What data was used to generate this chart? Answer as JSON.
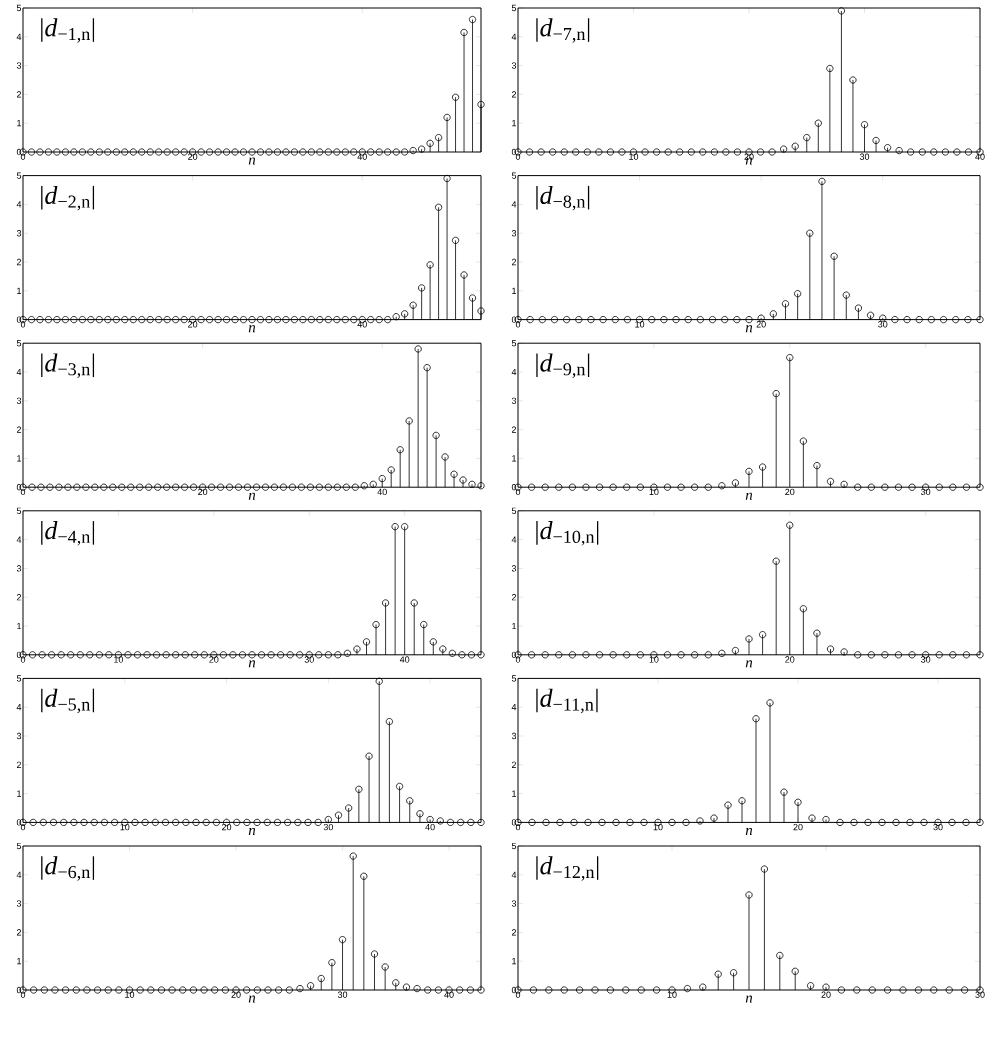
{
  "chart_data": [
    {
      "type": "lollipop",
      "annotations": [
        "|*d*$_{−1,n}$|"
      ],
      "xlabel": "n",
      "color": "#000000",
      "marker": "circle",
      "xlim": [
        0,
        54
      ],
      "ylim": [
        0,
        5
      ],
      "xticks": [
        0,
        20,
        40
      ],
      "yticks": [
        0,
        1,
        2,
        3,
        4,
        5
      ],
      "x": [
        0,
        1,
        2,
        3,
        4,
        5,
        6,
        7,
        8,
        9,
        10,
        11,
        12,
        13,
        14,
        15,
        16,
        17,
        18,
        19,
        20,
        21,
        22,
        23,
        24,
        25,
        26,
        27,
        28,
        29,
        30,
        31,
        32,
        33,
        34,
        35,
        36,
        37,
        38,
        39,
        40,
        41,
        42,
        43,
        44,
        45,
        46,
        47,
        48,
        49,
        50,
        51,
        52,
        53,
        54
      ],
      "values": [
        0,
        0,
        0,
        0,
        0,
        0,
        0,
        0,
        0,
        0,
        0,
        0,
        0,
        0,
        0,
        0,
        0,
        0,
        0,
        0,
        0,
        0,
        0,
        0,
        0,
        0,
        0,
        0,
        0,
        0,
        0,
        0,
        0,
        0,
        0,
        0,
        0,
        0,
        0,
        0,
        0,
        0,
        0,
        0,
        0,
        0,
        0.05,
        0.1,
        0.3,
        0.5,
        1.2,
        1.9,
        4.15,
        4.6,
        1.65
      ]
    },
    {
      "type": "lollipop",
      "annotations": [
        "|*d*$_{−7,n}$|"
      ],
      "xlabel": "n",
      "color": "#000000",
      "marker": "circle",
      "xlim": [
        0,
        40
      ],
      "ylim": [
        0,
        5
      ],
      "xticks": [
        0,
        10,
        20,
        30,
        40
      ],
      "yticks": [
        0,
        1,
        2,
        3,
        4,
        5
      ],
      "x": [
        0,
        1,
        2,
        3,
        4,
        5,
        6,
        7,
        8,
        9,
        10,
        11,
        12,
        13,
        14,
        15,
        16,
        17,
        18,
        19,
        20,
        21,
        22,
        23,
        24,
        25,
        26,
        27,
        28,
        29,
        30,
        31,
        32,
        33,
        34,
        35,
        36,
        37,
        38,
        39,
        40
      ],
      "values": [
        0,
        0,
        0,
        0,
        0,
        0,
        0,
        0,
        0,
        0,
        0,
        0,
        0,
        0,
        0,
        0,
        0,
        0,
        0,
        0,
        0,
        0,
        0,
        0.1,
        0.2,
        0.5,
        1.0,
        2.9,
        4.9,
        2.5,
        0.95,
        0.4,
        0.15,
        0.05,
        0,
        0,
        0,
        0,
        0,
        0,
        0
      ]
    },
    {
      "type": "lollipop",
      "annotations": [
        "|*d*$_{−2,n}$|"
      ],
      "xlabel": "n",
      "color": "#000000",
      "marker": "circle",
      "xlim": [
        0,
        54
      ],
      "ylim": [
        0,
        5
      ],
      "xticks": [
        0,
        20,
        40
      ],
      "yticks": [
        0,
        1,
        2,
        3,
        4,
        5
      ],
      "x": [
        0,
        1,
        2,
        3,
        4,
        5,
        6,
        7,
        8,
        9,
        10,
        11,
        12,
        13,
        14,
        15,
        16,
        17,
        18,
        19,
        20,
        21,
        22,
        23,
        24,
        25,
        26,
        27,
        28,
        29,
        30,
        31,
        32,
        33,
        34,
        35,
        36,
        37,
        38,
        39,
        40,
        41,
        42,
        43,
        44,
        45,
        46,
        47,
        48,
        49,
        50,
        51,
        52,
        53,
        54
      ],
      "values": [
        0,
        0,
        0,
        0,
        0,
        0,
        0,
        0,
        0,
        0,
        0,
        0,
        0,
        0,
        0,
        0,
        0,
        0,
        0,
        0,
        0,
        0,
        0,
        0,
        0,
        0,
        0,
        0,
        0,
        0,
        0,
        0,
        0,
        0,
        0,
        0,
        0,
        0,
        0,
        0,
        0,
        0,
        0,
        0,
        0.1,
        0.2,
        0.5,
        1.1,
        1.9,
        3.9,
        4.9,
        2.75,
        1.55,
        0.75,
        0.3
      ]
    },
    {
      "type": "lollipop",
      "annotations": [
        "|*d*$_{−8,n}$|"
      ],
      "xlabel": "n",
      "color": "#000000",
      "marker": "circle",
      "xlim": [
        0,
        38
      ],
      "ylim": [
        0,
        5
      ],
      "xticks": [
        0,
        10,
        20,
        30
      ],
      "yticks": [
        0,
        1,
        2,
        3,
        4,
        5
      ],
      "x": [
        0,
        1,
        2,
        3,
        4,
        5,
        6,
        7,
        8,
        9,
        10,
        11,
        12,
        13,
        14,
        15,
        16,
        17,
        18,
        19,
        20,
        21,
        22,
        23,
        24,
        25,
        26,
        27,
        28,
        29,
        30,
        31,
        32,
        33,
        34,
        35,
        36,
        37,
        38
      ],
      "values": [
        0,
        0,
        0,
        0,
        0,
        0,
        0,
        0,
        0,
        0,
        0,
        0,
        0,
        0,
        0,
        0,
        0,
        0,
        0,
        0,
        0.05,
        0.2,
        0.55,
        0.9,
        3.0,
        4.8,
        2.2,
        0.85,
        0.4,
        0.15,
        0.05,
        0,
        0,
        0,
        0,
        0,
        0,
        0,
        0
      ]
    },
    {
      "type": "lollipop",
      "annotations": [
        "|*d*$_{−3,n}$|"
      ],
      "xlabel": "n",
      "color": "#000000",
      "marker": "circle",
      "xlim": [
        0,
        51
      ],
      "ylim": [
        0,
        5
      ],
      "xticks": [
        0,
        20,
        40
      ],
      "yticks": [
        0,
        1,
        2,
        3,
        4,
        5
      ],
      "x": [
        0,
        1,
        2,
        3,
        4,
        5,
        6,
        7,
        8,
        9,
        10,
        11,
        12,
        13,
        14,
        15,
        16,
        17,
        18,
        19,
        20,
        21,
        22,
        23,
        24,
        25,
        26,
        27,
        28,
        29,
        30,
        31,
        32,
        33,
        34,
        35,
        36,
        37,
        38,
        39,
        40,
        41,
        42,
        43,
        44,
        45,
        46,
        47,
        48,
        49,
        50,
        51
      ],
      "values": [
        0,
        0,
        0,
        0,
        0,
        0,
        0,
        0,
        0,
        0,
        0,
        0,
        0,
        0,
        0,
        0,
        0,
        0,
        0,
        0,
        0,
        0,
        0,
        0,
        0,
        0,
        0,
        0,
        0,
        0,
        0,
        0,
        0,
        0,
        0,
        0,
        0,
        0,
        0.05,
        0.1,
        0.3,
        0.6,
        1.3,
        2.3,
        4.8,
        4.15,
        1.8,
        1.05,
        0.45,
        0.25,
        0.1,
        0.05
      ]
    },
    {
      "type": "lollipop",
      "annotations": [
        "|*d*$_{−9,n}$|"
      ],
      "xlabel": "n",
      "color": "#000000",
      "marker": "circle",
      "xlim": [
        0,
        34
      ],
      "ylim": [
        0,
        5
      ],
      "xticks": [
        0,
        10,
        20,
        30
      ],
      "yticks": [
        0,
        1,
        2,
        3,
        4,
        5
      ],
      "x": [
        0,
        1,
        2,
        3,
        4,
        5,
        6,
        7,
        8,
        9,
        10,
        11,
        12,
        13,
        14,
        15,
        16,
        17,
        18,
        19,
        20,
        21,
        22,
        23,
        24,
        25,
        26,
        27,
        28,
        29,
        30,
        31,
        32,
        33,
        34
      ],
      "values": [
        0,
        0,
        0,
        0,
        0,
        0,
        0,
        0,
        0,
        0,
        0,
        0,
        0,
        0,
        0,
        0.05,
        0.15,
        0.55,
        0.7,
        3.25,
        4.5,
        1.6,
        0.75,
        0.2,
        0.1,
        0,
        0,
        0,
        0,
        0,
        0,
        0,
        0,
        0,
        0
      ]
    },
    {
      "type": "lollipop",
      "annotations": [
        "|*d*$_{−4,n}$|"
      ],
      "xlabel": "n",
      "color": "#000000",
      "marker": "circle",
      "xlim": [
        0,
        48
      ],
      "ylim": [
        0,
        5
      ],
      "xticks": [
        0,
        10,
        20,
        30,
        40
      ],
      "yticks": [
        0,
        1,
        2,
        3,
        4,
        5
      ],
      "x": [
        0,
        1,
        2,
        3,
        4,
        5,
        6,
        7,
        8,
        9,
        10,
        11,
        12,
        13,
        14,
        15,
        16,
        17,
        18,
        19,
        20,
        21,
        22,
        23,
        24,
        25,
        26,
        27,
        28,
        29,
        30,
        31,
        32,
        33,
        34,
        35,
        36,
        37,
        38,
        39,
        40,
        41,
        42,
        43,
        44,
        45,
        46,
        47,
        48
      ],
      "values": [
        0,
        0,
        0,
        0,
        0,
        0,
        0,
        0,
        0,
        0,
        0,
        0,
        0,
        0,
        0,
        0,
        0,
        0,
        0,
        0,
        0,
        0,
        0,
        0,
        0,
        0,
        0,
        0,
        0,
        0,
        0,
        0,
        0,
        0,
        0.05,
        0.2,
        0.45,
        1.05,
        1.8,
        4.45,
        4.45,
        1.8,
        1.05,
        0.45,
        0.2,
        0.05,
        0,
        0,
        0
      ]
    },
    {
      "type": "lollipop",
      "annotations": [
        "|*d*$_{−10,n}$|"
      ],
      "xlabel": "n",
      "color": "#000000",
      "marker": "circle",
      "xlim": [
        0,
        34
      ],
      "ylim": [
        0,
        5
      ],
      "xticks": [
        0,
        10,
        20,
        30
      ],
      "yticks": [
        0,
        1,
        2,
        3,
        4,
        5
      ],
      "x": [
        0,
        1,
        2,
        3,
        4,
        5,
        6,
        7,
        8,
        9,
        10,
        11,
        12,
        13,
        14,
        15,
        16,
        17,
        18,
        19,
        20,
        21,
        22,
        23,
        24,
        25,
        26,
        27,
        28,
        29,
        30,
        31,
        32,
        33,
        34
      ],
      "values": [
        0,
        0,
        0,
        0,
        0,
        0,
        0,
        0,
        0,
        0,
        0,
        0,
        0,
        0,
        0,
        0.05,
        0.15,
        0.55,
        0.7,
        3.25,
        4.5,
        1.6,
        0.75,
        0.2,
        0.1,
        0,
        0,
        0,
        0,
        0,
        0,
        0,
        0,
        0,
        0
      ]
    },
    {
      "type": "lollipop",
      "annotations": [
        "|*d*$_{−5,n}$|"
      ],
      "xlabel": "n",
      "color": "#000000",
      "marker": "circle",
      "xlim": [
        0,
        45
      ],
      "ylim": [
        0,
        5
      ],
      "xticks": [
        0,
        10,
        20,
        30,
        40
      ],
      "yticks": [
        0,
        1,
        2,
        3,
        4,
        5
      ],
      "x": [
        0,
        1,
        2,
        3,
        4,
        5,
        6,
        7,
        8,
        9,
        10,
        11,
        12,
        13,
        14,
        15,
        16,
        17,
        18,
        19,
        20,
        21,
        22,
        23,
        24,
        25,
        26,
        27,
        28,
        29,
        30,
        31,
        32,
        33,
        34,
        35,
        36,
        37,
        38,
        39,
        40,
        41,
        42,
        43,
        44,
        45
      ],
      "values": [
        0,
        0,
        0,
        0,
        0,
        0,
        0,
        0,
        0,
        0,
        0,
        0,
        0,
        0,
        0,
        0,
        0,
        0,
        0,
        0,
        0,
        0,
        0,
        0,
        0,
        0,
        0,
        0,
        0,
        0,
        0.1,
        0.25,
        0.5,
        1.15,
        2.3,
        4.9,
        3.5,
        1.25,
        0.75,
        0.3,
        0.1,
        0.05,
        0,
        0,
        0,
        0
      ]
    },
    {
      "type": "lollipop",
      "annotations": [
        "|*d*$_{−11,n}$|"
      ],
      "xlabel": "n",
      "color": "#000000",
      "marker": "circle",
      "xlim": [
        0,
        33
      ],
      "ylim": [
        0,
        5
      ],
      "xticks": [
        0,
        10,
        20,
        30
      ],
      "yticks": [
        0,
        1,
        2,
        3,
        4,
        5
      ],
      "x": [
        0,
        1,
        2,
        3,
        4,
        5,
        6,
        7,
        8,
        9,
        10,
        11,
        12,
        13,
        14,
        15,
        16,
        17,
        18,
        19,
        20,
        21,
        22,
        23,
        24,
        25,
        26,
        27,
        28,
        29,
        30,
        31,
        32,
        33
      ],
      "values": [
        0,
        0,
        0,
        0,
        0,
        0,
        0,
        0,
        0,
        0,
        0,
        0,
        0,
        0.05,
        0.15,
        0.6,
        0.75,
        3.6,
        4.15,
        1.05,
        0.7,
        0.15,
        0.1,
        0,
        0,
        0,
        0,
        0,
        0,
        0,
        0,
        0,
        0,
        0
      ]
    },
    {
      "type": "lollipop",
      "annotations": [
        "|*d*$_{−6,n}$|"
      ],
      "xlabel": "n",
      "color": "#000000",
      "marker": "circle",
      "xlim": [
        0,
        43
      ],
      "ylim": [
        0,
        5
      ],
      "xticks": [
        0,
        10,
        20,
        30,
        40
      ],
      "yticks": [
        0,
        1,
        2,
        3,
        4,
        5
      ],
      "x": [
        0,
        1,
        2,
        3,
        4,
        5,
        6,
        7,
        8,
        9,
        10,
        11,
        12,
        13,
        14,
        15,
        16,
        17,
        18,
        19,
        20,
        21,
        22,
        23,
        24,
        25,
        26,
        27,
        28,
        29,
        30,
        31,
        32,
        33,
        34,
        35,
        36,
        37,
        38,
        39,
        40,
        41,
        42,
        43
      ],
      "values": [
        0,
        0,
        0,
        0,
        0,
        0,
        0,
        0,
        0,
        0,
        0,
        0,
        0,
        0,
        0,
        0,
        0,
        0,
        0,
        0,
        0,
        0,
        0,
        0,
        0,
        0,
        0.05,
        0.15,
        0.4,
        0.95,
        1.75,
        4.65,
        3.95,
        1.25,
        0.8,
        0.25,
        0.1,
        0.05,
        0,
        0,
        0,
        0,
        0,
        0
      ]
    },
    {
      "type": "lollipop",
      "annotations": [
        "|*d*$_{−12,n}$|"
      ],
      "xlabel": "n",
      "color": "#000000",
      "marker": "circle",
      "xlim": [
        0,
        30
      ],
      "ylim": [
        0,
        5
      ],
      "xticks": [
        0,
        10,
        20,
        30
      ],
      "yticks": [
        0,
        1,
        2,
        3,
        4,
        5
      ],
      "x": [
        0,
        1,
        2,
        3,
        4,
        5,
        6,
        7,
        8,
        9,
        10,
        11,
        12,
        13,
        14,
        15,
        16,
        17,
        18,
        19,
        20,
        21,
        22,
        23,
        24,
        25,
        26,
        27,
        28,
        29,
        30
      ],
      "values": [
        0,
        0,
        0,
        0,
        0,
        0,
        0,
        0,
        0,
        0,
        0,
        0.05,
        0.1,
        0.55,
        0.6,
        3.3,
        4.2,
        1.2,
        0.65,
        0.15,
        0.1,
        0,
        0,
        0,
        0,
        0,
        0,
        0,
        0,
        0,
        0
      ]
    }
  ]
}
